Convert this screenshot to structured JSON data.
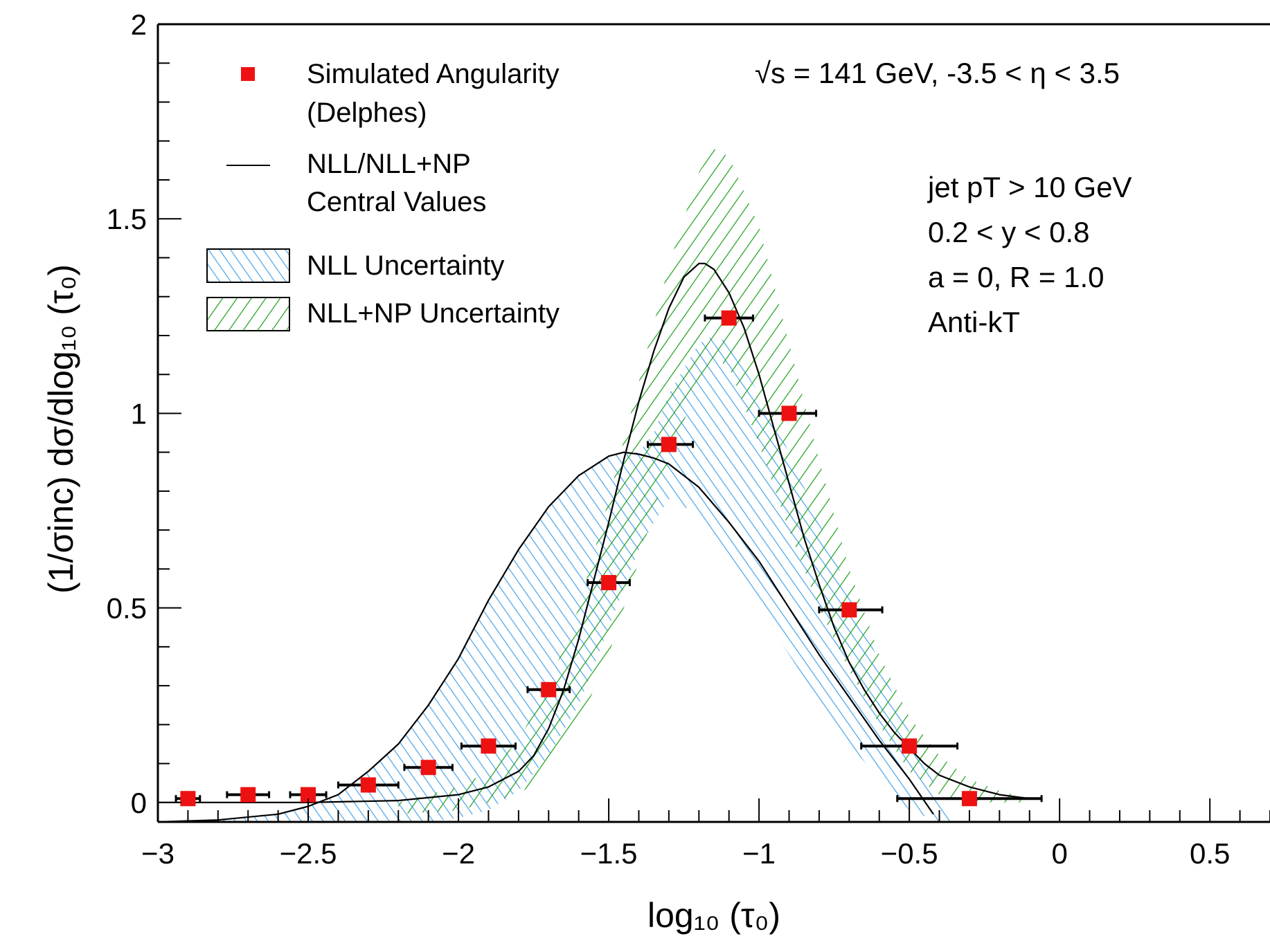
{
  "chart_data": {
    "type": "scatter",
    "xlim": [
      -3,
      0.7
    ],
    "ylim": [
      -0.05,
      2.0
    ],
    "xlabel": "log₁₀ (τ₀)",
    "ylabel": "(1/σinc) dσ/dlog₁₀ (τ₀)",
    "x_ticks": [
      "−3",
      "−2.5",
      "−2",
      "−1.5",
      "−1",
      "−0.5",
      "0",
      "0.5"
    ],
    "y_ticks": [
      "0",
      "0.5",
      "1",
      "1.5",
      "2"
    ],
    "grid": false,
    "legend_position": "top-left",
    "colors": {
      "markers": "#ee1111",
      "nll_band": "#4da6e8",
      "nllnp_band": "#22a022",
      "curve": "#000000"
    },
    "legend": {
      "markers_line1": "Simulated Angularity",
      "markers_line2": "(Delphes)",
      "curve_line1": "NLL/NLL+NP",
      "curve_line2": "Central Values",
      "nll_band": "NLL Uncertainty",
      "nllnp_band": "NLL+NP Uncertainty"
    },
    "annotations": {
      "energy": "√s = 141 GeV, -3.5 < η < 3.5",
      "jet_pt": "jet pT > 10 GeV",
      "y_range": "0.2 < y < 0.8",
      "params": "a = 0, R = 1.0",
      "algo": "Anti-kT"
    },
    "series": [
      {
        "name": "Simulated Angularity (Delphes)",
        "kind": "points",
        "x": [
          -2.9,
          -2.7,
          -2.5,
          -2.3,
          -2.1,
          -1.9,
          -1.7,
          -1.5,
          -1.3,
          -1.1,
          -0.9,
          -0.7,
          -0.5,
          -0.3
        ],
        "y": [
          0.01,
          0.02,
          0.02,
          0.045,
          0.09,
          0.145,
          0.29,
          0.565,
          0.92,
          1.245,
          1.0,
          0.495,
          0.145,
          0.01
        ],
        "x_err_low": [
          0.04,
          0.07,
          0.06,
          0.1,
          0.08,
          0.09,
          0.07,
          0.07,
          0.07,
          0.08,
          0.1,
          0.1,
          0.16,
          0.24
        ],
        "x_err_high": [
          0.04,
          0.07,
          0.06,
          0.1,
          0.08,
          0.09,
          0.07,
          0.07,
          0.08,
          0.08,
          0.09,
          0.11,
          0.16,
          0.24
        ]
      },
      {
        "name": "NLL central value",
        "kind": "line",
        "x": [
          -3.0,
          -2.8,
          -2.6,
          -2.5,
          -2.4,
          -2.3,
          -2.2,
          -2.1,
          -2.0,
          -1.9,
          -1.8,
          -1.7,
          -1.6,
          -1.5,
          -1.45,
          -1.4,
          -1.35,
          -1.3,
          -1.2,
          -1.1,
          -1.0,
          -0.9,
          -0.8,
          -0.7,
          -0.6,
          -0.5,
          -0.42
        ],
        "y": [
          -0.05,
          -0.045,
          -0.03,
          -0.01,
          0.02,
          0.08,
          0.15,
          0.25,
          0.37,
          0.52,
          0.65,
          0.76,
          0.84,
          0.89,
          0.9,
          0.895,
          0.885,
          0.87,
          0.81,
          0.72,
          0.62,
          0.5,
          0.38,
          0.27,
          0.16,
          0.06,
          -0.03
        ]
      },
      {
        "name": "NLL+NP central value",
        "kind": "line",
        "x": [
          -3.0,
          -2.5,
          -2.2,
          -2.0,
          -1.9,
          -1.8,
          -1.75,
          -1.7,
          -1.65,
          -1.6,
          -1.55,
          -1.5,
          -1.45,
          -1.4,
          -1.35,
          -1.3,
          -1.25,
          -1.2,
          -1.18,
          -1.15,
          -1.1,
          -1.05,
          -1.0,
          -0.95,
          -0.9,
          -0.85,
          -0.8,
          -0.75,
          -0.7,
          -0.65,
          -0.6,
          -0.55,
          -0.5,
          -0.45,
          -0.4,
          -0.3,
          -0.2,
          -0.1
        ],
        "y": [
          0.0,
          0.0,
          0.005,
          0.02,
          0.04,
          0.08,
          0.12,
          0.19,
          0.29,
          0.42,
          0.57,
          0.72,
          0.88,
          1.03,
          1.16,
          1.27,
          1.35,
          1.385,
          1.385,
          1.37,
          1.31,
          1.22,
          1.1,
          0.96,
          0.82,
          0.68,
          0.56,
          0.45,
          0.36,
          0.29,
          0.23,
          0.18,
          0.14,
          0.1,
          0.07,
          0.04,
          0.02,
          0.01
        ]
      },
      {
        "name": "NLL Uncertainty",
        "kind": "band",
        "x": [
          -3.0,
          -2.8,
          -2.6,
          -2.5,
          -2.4,
          -2.3,
          -2.2,
          -2.1,
          -2.0,
          -1.9,
          -1.8,
          -1.7,
          -1.6,
          -1.5,
          -1.45,
          -1.4,
          -1.35,
          -1.3,
          -1.2,
          -1.15,
          -1.1,
          -1.0,
          -0.9,
          -0.8,
          -0.7,
          -0.6,
          -0.5,
          -0.4,
          -0.35
        ],
        "y_low": [
          -0.05,
          -0.05,
          -0.05,
          -0.05,
          -0.05,
          -0.05,
          -0.05,
          -0.05,
          -0.04,
          -0.02,
          0.03,
          0.12,
          0.25,
          0.45,
          0.55,
          0.65,
          0.72,
          0.78,
          0.74,
          0.68,
          0.62,
          0.5,
          0.38,
          0.26,
          0.15,
          0.06,
          -0.02,
          -0.05,
          -0.05
        ],
        "y_high": [
          -0.05,
          -0.045,
          -0.03,
          -0.01,
          0.02,
          0.08,
          0.15,
          0.25,
          0.37,
          0.52,
          0.65,
          0.76,
          0.84,
          0.89,
          0.9,
          0.9,
          0.95,
          1.05,
          1.18,
          1.2,
          1.18,
          1.05,
          0.9,
          0.72,
          0.54,
          0.36,
          0.18,
          0.02,
          -0.05
        ]
      },
      {
        "name": "NLL+NP Uncertainty",
        "kind": "band",
        "x": [
          -2.2,
          -2.0,
          -1.9,
          -1.8,
          -1.7,
          -1.6,
          -1.5,
          -1.4,
          -1.3,
          -1.2,
          -1.15,
          -1.1,
          -1.0,
          -0.9,
          -0.8,
          -0.7,
          -0.6,
          -0.5,
          -0.4,
          -0.3,
          -0.2,
          -0.1
        ],
        "y_low": [
          -0.03,
          -0.02,
          0.0,
          0.02,
          0.08,
          0.2,
          0.38,
          0.62,
          0.88,
          1.08,
          1.14,
          1.12,
          0.92,
          0.7,
          0.5,
          0.34,
          0.2,
          0.08,
          0.02,
          0.0,
          0.0,
          0.0
        ],
        "y_high": [
          0.0,
          0.04,
          0.08,
          0.16,
          0.3,
          0.5,
          0.78,
          1.08,
          1.38,
          1.62,
          1.68,
          1.66,
          1.48,
          1.18,
          0.88,
          0.6,
          0.38,
          0.22,
          0.12,
          0.06,
          0.03,
          0.01
        ]
      }
    ]
  }
}
